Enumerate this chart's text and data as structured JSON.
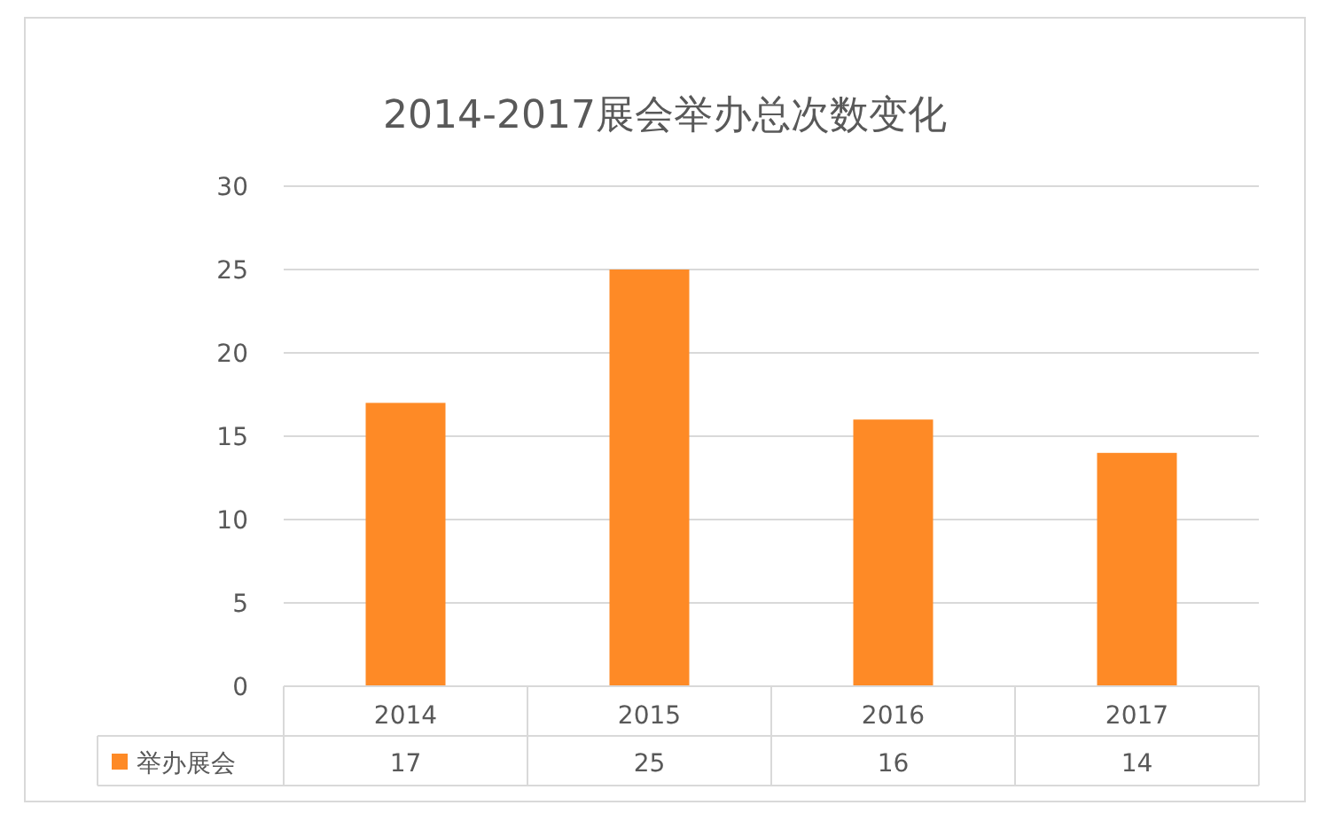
{
  "chart_data": {
    "type": "bar",
    "title": "2014-2017展会举办总次数变化",
    "categories": [
      "2014",
      "2015",
      "2016",
      "2017"
    ],
    "series": [
      {
        "name": "举办展会",
        "color": "#fe8a26",
        "values": [
          17,
          25,
          16,
          14
        ]
      }
    ],
    "ylim": [
      0,
      30
    ],
    "yticks": [
      0,
      5,
      10,
      15,
      20,
      25,
      30
    ],
    "grid": "y",
    "legend": "bottom",
    "data_labels": true
  }
}
